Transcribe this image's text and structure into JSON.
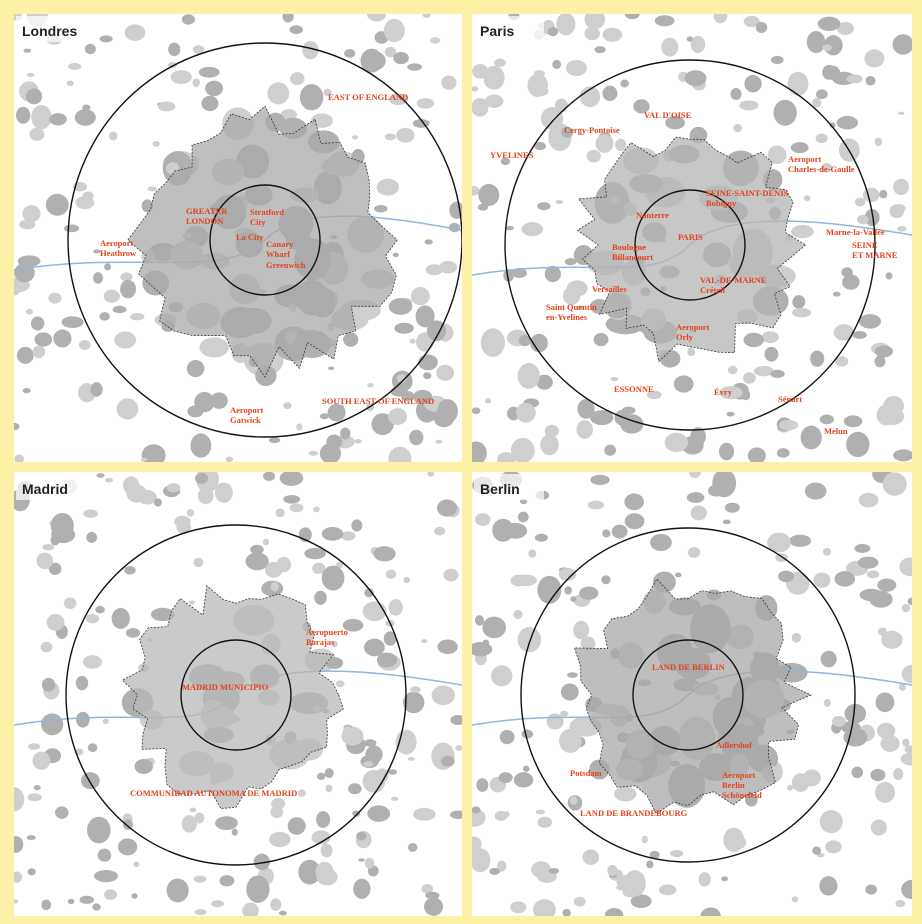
{
  "panels": [
    {
      "title": "Londres",
      "labels": [
        {
          "lines": [
            "EAST OF ENGLAND"
          ]
        },
        {
          "lines": [
            "GREATER",
            "LONDON"
          ]
        },
        {
          "lines": [
            "Stratford",
            "City"
          ]
        },
        {
          "lines": [
            "La City"
          ]
        },
        {
          "lines": [
            "Canary",
            "Wharf"
          ]
        },
        {
          "lines": [
            "Greenwich"
          ]
        },
        {
          "lines": [
            "Aeroport",
            "Heathrow"
          ]
        },
        {
          "lines": [
            "SOUTH EAST OF ENGLAND"
          ]
        },
        {
          "lines": [
            "Aeroport",
            "Gatwick"
          ]
        }
      ]
    },
    {
      "title": "Paris",
      "labels": [
        {
          "lines": [
            "VAL D'OISE"
          ]
        },
        {
          "lines": [
            "Cergy-Pontoise"
          ]
        },
        {
          "lines": [
            "YVELINES"
          ]
        },
        {
          "lines": [
            "Aeroport",
            "Charles-de-Gaulle"
          ]
        },
        {
          "lines": [
            "SEINE-SAINT-DENIS",
            "Bobigny"
          ]
        },
        {
          "lines": [
            "Nanterre"
          ]
        },
        {
          "lines": [
            "PARIS"
          ]
        },
        {
          "lines": [
            "Marne-la-Vallée"
          ]
        },
        {
          "lines": [
            "Boulogne",
            "Billancourt"
          ]
        },
        {
          "lines": [
            "SEINE",
            "ET MARNE"
          ]
        },
        {
          "lines": [
            "Versailles"
          ]
        },
        {
          "lines": [
            "VAL-DE-MARNE",
            "Créteil"
          ]
        },
        {
          "lines": [
            "Saint Quentin",
            "en-Yvelines"
          ]
        },
        {
          "lines": [
            "Aeroport",
            "Orly"
          ]
        },
        {
          "lines": [
            "ESSONNE"
          ]
        },
        {
          "lines": [
            "Évry"
          ]
        },
        {
          "lines": [
            "Sénart"
          ]
        },
        {
          "lines": [
            "Melun"
          ]
        }
      ]
    },
    {
      "title": "Madrid",
      "labels": [
        {
          "lines": [
            "Aeropuerto",
            "Barajas"
          ]
        },
        {
          "lines": [
            "MADRID MUNICIPIO"
          ]
        },
        {
          "lines": [
            "COMMUNIDAD AUTONOMA DE MADRID"
          ]
        }
      ]
    },
    {
      "title": "Berlin",
      "labels": [
        {
          "lines": [
            "LAND DE BERLIN"
          ]
        },
        {
          "lines": [
            "Adlershof"
          ]
        },
        {
          "lines": [
            "Potsdam"
          ]
        },
        {
          "lines": [
            "Aeroport",
            "Berlin",
            "Schönefeld"
          ]
        },
        {
          "lines": [
            "LAND DE BRANDEBOURG"
          ]
        }
      ]
    }
  ]
}
